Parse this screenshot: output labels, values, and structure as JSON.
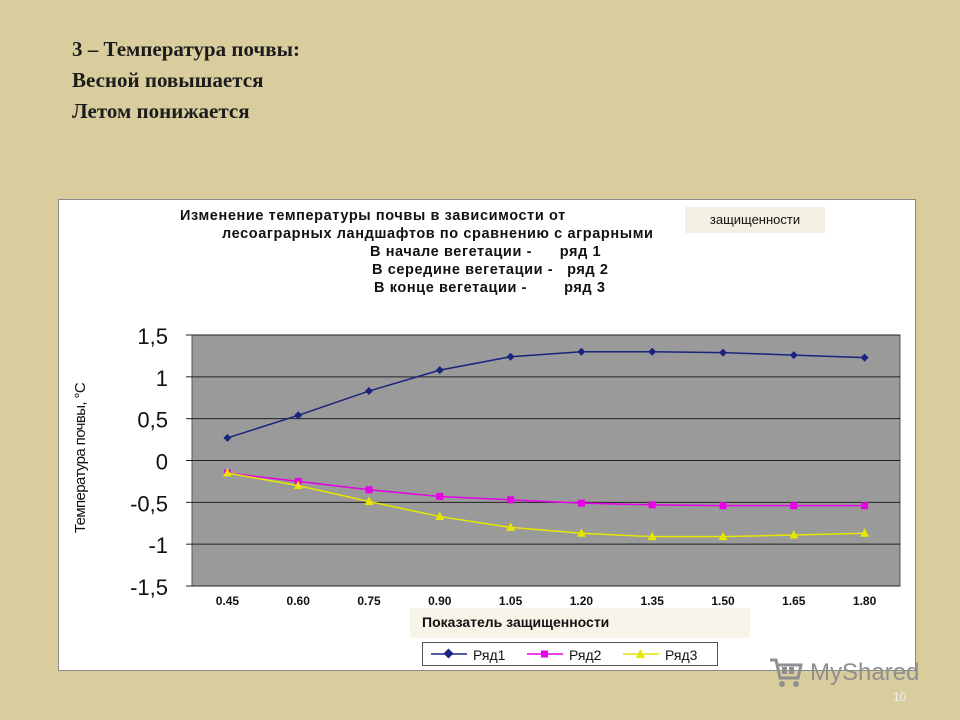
{
  "slide": {
    "title_lines": [
      "3 – Температура почвы:",
      "Весной повышается",
      "Летом понижается"
    ],
    "page_number": "10",
    "watermark": "MyShared"
  },
  "chart_data": {
    "type": "line",
    "title_lines": [
      "Изменение температуры почвы в зависимости от",
      "лесоаграрных ландшафтов по сравнению с аграрными",
      "В начале вегетации -      ряд 1",
      "В середине вегетации -   ряд 2",
      "В конце вегетации -        ряд 3"
    ],
    "title_tag": "защищенности",
    "xlabel": "Показатель защищенности",
    "ylabel": "Температура почвы,  °С",
    "categories": [
      "0.45",
      "0.60",
      "0.75",
      "0.90",
      "1.05",
      "1.20",
      "1.35",
      "1.50",
      "1.65",
      "1.80"
    ],
    "y_ticks": [
      "1,5",
      "1",
      "0,5",
      "0",
      "-0,5",
      "-1",
      "-1,5"
    ],
    "ylim": [
      -1.5,
      1.5
    ],
    "grid": true,
    "legend_position": "bottom",
    "series": [
      {
        "name": "Ряд1",
        "color": "#1a237e",
        "marker": "diamond",
        "values": [
          0.27,
          0.54,
          0.83,
          1.08,
          1.24,
          1.3,
          1.3,
          1.29,
          1.26,
          1.23
        ]
      },
      {
        "name": "Ряд2",
        "color": "#e600e6",
        "marker": "square",
        "values": [
          -0.15,
          -0.25,
          -0.35,
          -0.43,
          -0.47,
          -0.51,
          -0.53,
          -0.54,
          -0.54,
          -0.54
        ]
      },
      {
        "name": "Ряд3",
        "color": "#e6e600",
        "marker": "triangle",
        "values": [
          -0.15,
          -0.3,
          -0.49,
          -0.67,
          -0.8,
          -0.87,
          -0.91,
          -0.91,
          -0.89,
          -0.87
        ]
      }
    ]
  }
}
